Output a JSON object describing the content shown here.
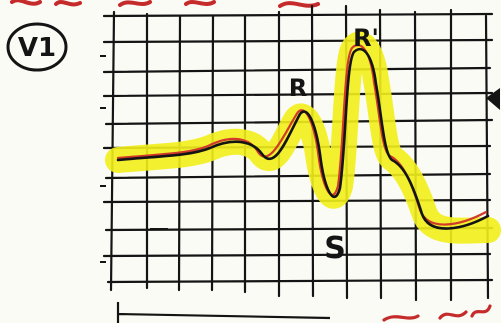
{
  "lead": {
    "label": "V1"
  },
  "waveform": {
    "peak_labels": [
      "R",
      "R'"
    ],
    "trough_label": "S"
  },
  "colors": {
    "ink": "#141414",
    "highlighter": "#f1ee1a",
    "red_pen": "#d23a2a",
    "paper": "#fbfbf6",
    "top_red_scribble": "#c62b2b"
  }
}
